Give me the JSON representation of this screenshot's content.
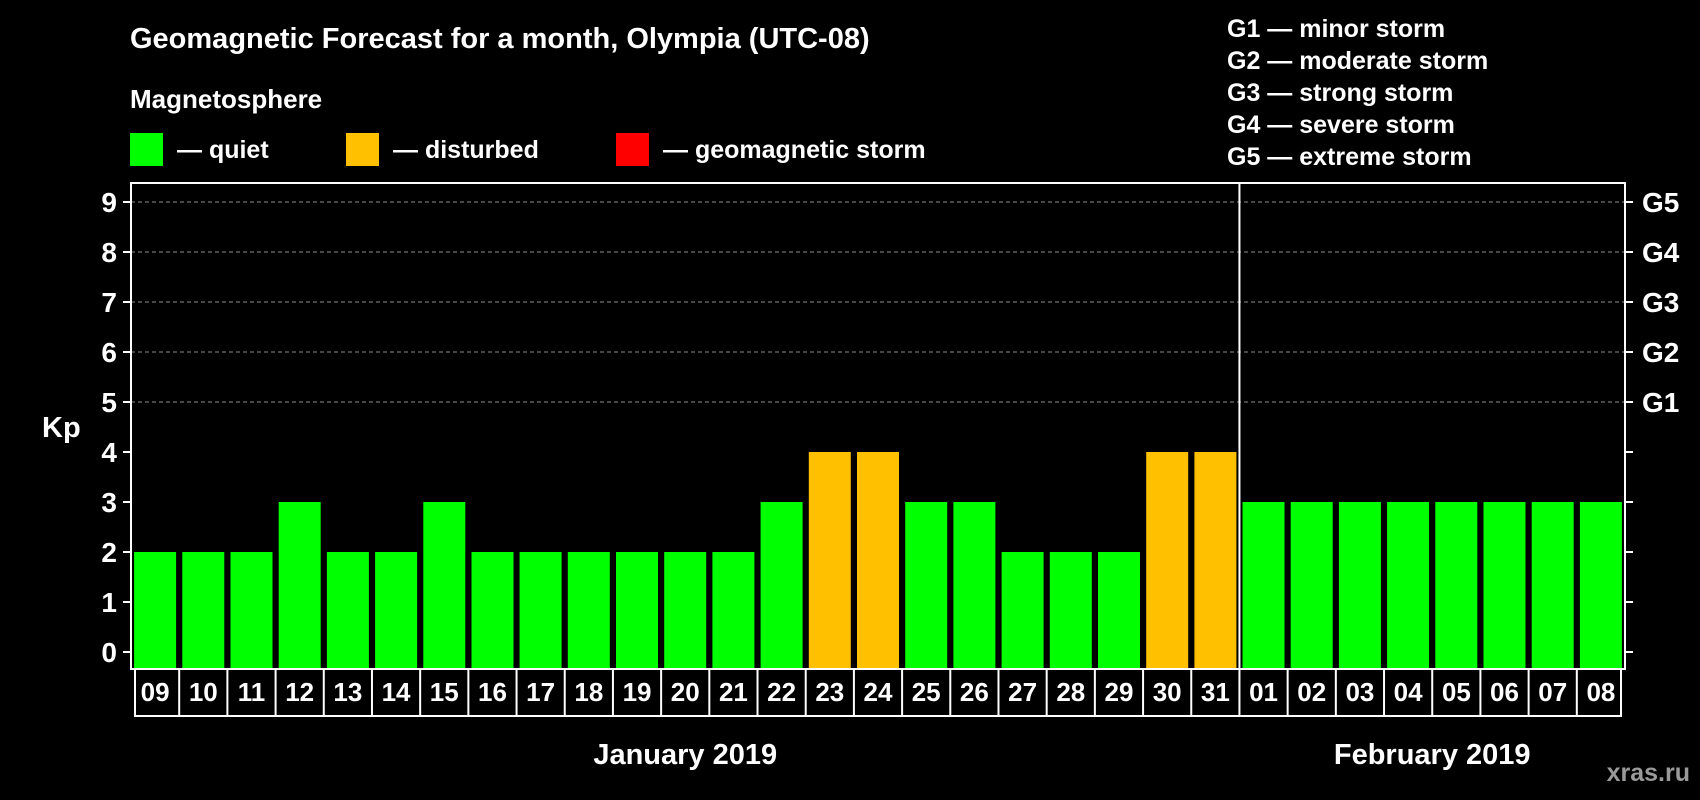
{
  "chart_data": {
    "type": "bar",
    "title": "Geomagnetic Forecast for a month, Olympia (UTC-08)",
    "subtitle": "Magnetosphere",
    "ylabel": "Kp",
    "ylim": [
      0,
      9
    ],
    "yticks": [
      0,
      1,
      2,
      3,
      4,
      5,
      6,
      7,
      8,
      9
    ],
    "grid": "dashed horizontal at 5-9",
    "legend": [
      {
        "label": "— quiet",
        "color": "#00ff00"
      },
      {
        "label": "— disturbed",
        "color": "#ffc000"
      },
      {
        "label": "— geomagnetic storm",
        "color": "#ff0000"
      }
    ],
    "g_scale": [
      {
        "level": "G1",
        "kp": 5,
        "label": "G1 — minor storm"
      },
      {
        "level": "G2",
        "kp": 6,
        "label": "G2 — moderate storm"
      },
      {
        "level": "G3",
        "kp": 7,
        "label": "G3 — strong storm"
      },
      {
        "level": "G4",
        "kp": 8,
        "label": "G4 — severe storm"
      },
      {
        "level": "G5",
        "kp": 9,
        "label": "G5 — extreme storm"
      }
    ],
    "months": [
      {
        "name": "January 2019",
        "first_index": 0,
        "last_index": 22
      },
      {
        "name": "February 2019",
        "first_index": 23,
        "last_index": 30
      }
    ],
    "categories": [
      "09",
      "10",
      "11",
      "12",
      "13",
      "14",
      "15",
      "16",
      "17",
      "18",
      "19",
      "20",
      "21",
      "22",
      "23",
      "24",
      "25",
      "26",
      "27",
      "28",
      "29",
      "30",
      "31",
      "01",
      "02",
      "03",
      "04",
      "05",
      "06",
      "07",
      "08"
    ],
    "values": [
      2,
      2,
      2,
      3,
      2,
      2,
      3,
      2,
      2,
      2,
      2,
      2,
      2,
      3,
      4,
      4,
      3,
      3,
      2,
      2,
      2,
      4,
      4,
      3,
      3,
      3,
      3,
      3,
      3,
      3,
      3
    ],
    "status_colors": {
      "quiet": "#00ff00",
      "disturbed": "#ffc000",
      "storm": "#ff0000"
    }
  },
  "watermark": "xras.ru"
}
